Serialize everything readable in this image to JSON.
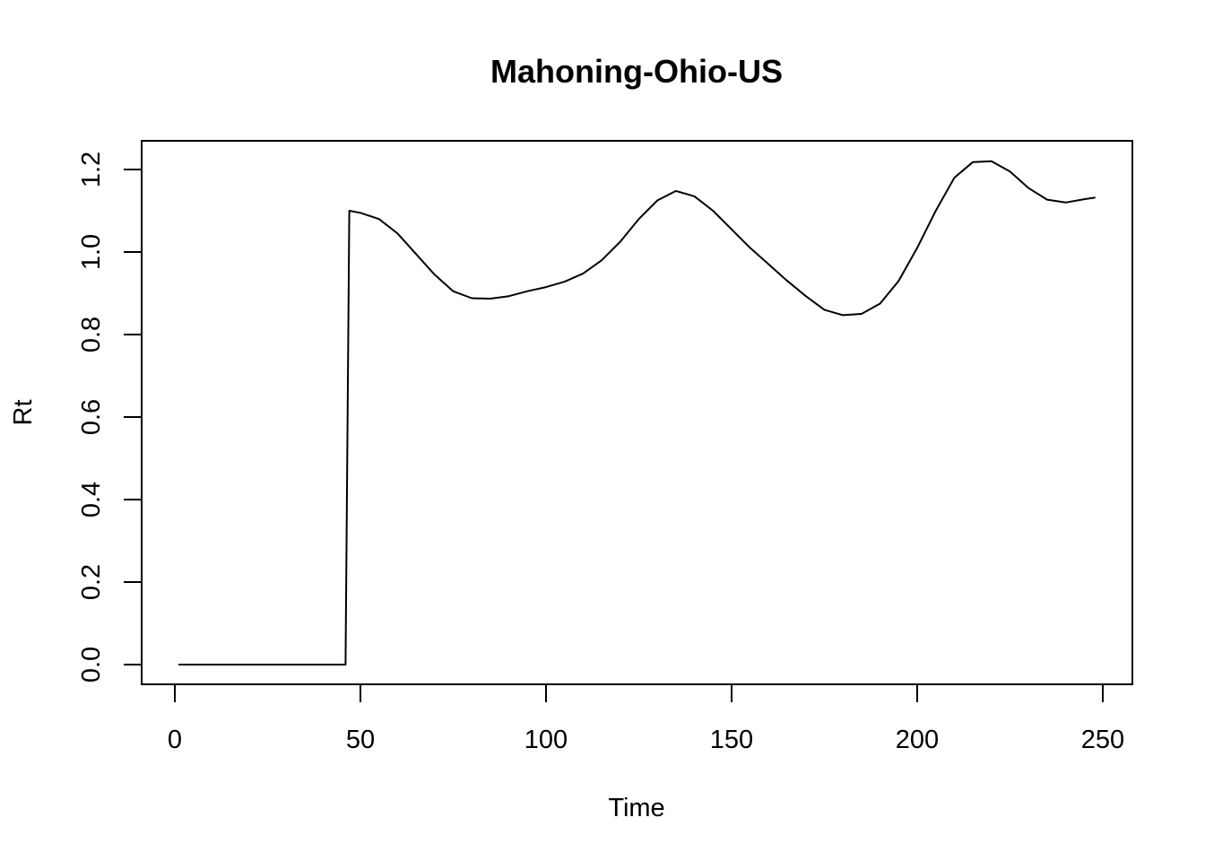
{
  "chart_data": {
    "type": "line",
    "title": "Mahoning-Ohio-US",
    "xlabel": "Time",
    "ylabel": "Rt",
    "xlim": [
      1,
      248
    ],
    "ylim": [
      0,
      1.2
    ],
    "xticks": [
      0,
      50,
      100,
      150,
      200,
      250
    ],
    "yticks": [
      0.0,
      0.2,
      0.4,
      0.6,
      0.8,
      1.0,
      1.2
    ],
    "xtick_labels": [
      "0",
      "50",
      "100",
      "150",
      "200",
      "250"
    ],
    "ytick_labels": [
      "0.0",
      "0.2",
      "0.4",
      "0.6",
      "0.8",
      "1.0",
      "1.2"
    ],
    "grid": false,
    "series": [
      {
        "color": "#000000",
        "x": [
          1,
          10,
          20,
          30,
          40,
          46,
          47,
          50,
          55,
          60,
          65,
          70,
          75,
          80,
          85,
          90,
          95,
          100,
          105,
          110,
          115,
          120,
          125,
          130,
          135,
          140,
          145,
          150,
          155,
          160,
          165,
          170,
          175,
          180,
          185,
          190,
          195,
          200,
          205,
          210,
          215,
          220,
          225,
          230,
          235,
          240,
          245,
          248
        ],
        "y": [
          0,
          0,
          0,
          0,
          0,
          0,
          1.1,
          1.095,
          1.08,
          1.045,
          0.995,
          0.945,
          0.905,
          0.888,
          0.887,
          0.893,
          0.905,
          0.915,
          0.928,
          0.948,
          0.98,
          1.025,
          1.08,
          1.125,
          1.148,
          1.135,
          1.1,
          1.055,
          1.01,
          0.97,
          0.93,
          0.893,
          0.86,
          0.847,
          0.85,
          0.875,
          0.93,
          1.01,
          1.1,
          1.18,
          1.218,
          1.22,
          1.195,
          1.155,
          1.127,
          1.12,
          1.128,
          1.132
        ]
      }
    ]
  }
}
